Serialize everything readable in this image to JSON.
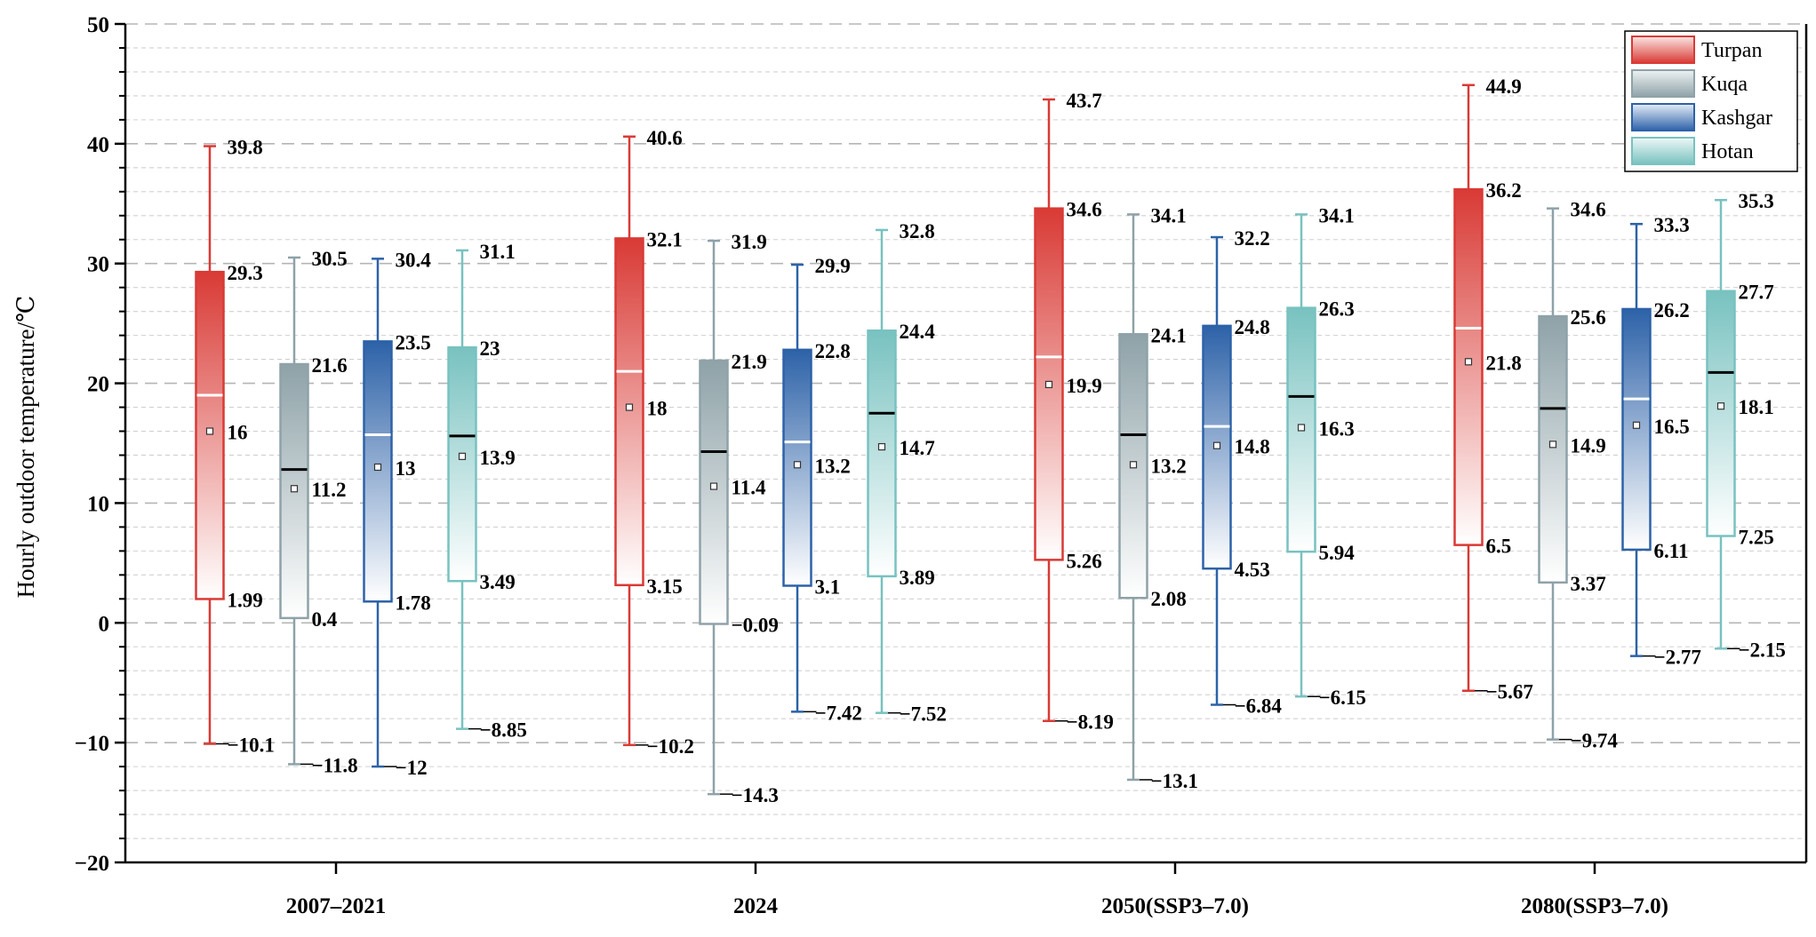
{
  "chart_data": {
    "type": "box",
    "title": "",
    "xlabel": "",
    "ylabel": "Hourly outdoor temperature/℃",
    "ylim": [
      -20,
      50
    ],
    "yticks": [
      "−20",
      "−10",
      "0",
      "10",
      "20",
      "30",
      "40",
      "50"
    ],
    "categories": [
      "2007–2021",
      "2024",
      "2050(SSP3–7.0)",
      "2080(SSP3–7.0)"
    ],
    "legend_position": "top-right",
    "grid": true,
    "series": [
      {
        "name": "Turpan",
        "color": "#d93a35",
        "light": "#fbe6e4",
        "median_color": "#ffffff",
        "boxes": [
          {
            "min": -10.1,
            "q1": 1.99,
            "median": 19.0,
            "mean": 16,
            "q3": 29.3,
            "max": 39.8,
            "labels": {
              "min": "−10.1",
              "q1": "1.99",
              "mean": "16",
              "q3": "29.3",
              "max": "39.8"
            }
          },
          {
            "min": -10.2,
            "q1": 3.15,
            "median": 21.0,
            "mean": 18,
            "q3": 32.1,
            "max": 40.6,
            "labels": {
              "min": "−10.2",
              "q1": "3.15",
              "mean": "18",
              "q3": "32.1",
              "max": "40.6"
            }
          },
          {
            "min": -8.19,
            "q1": 5.26,
            "median": 22.2,
            "mean": 19.9,
            "q3": 34.6,
            "max": 43.7,
            "labels": {
              "min": "−8.19",
              "q1": "5.26",
              "mean": "19.9",
              "q3": "34.6",
              "max": "43.7"
            }
          },
          {
            "min": -5.67,
            "q1": 6.5,
            "median": 24.6,
            "mean": 21.8,
            "q3": 36.2,
            "max": 44.9,
            "labels": {
              "min": "−5.67",
              "q1": "6.5",
              "mean": "21.8",
              "q3": "36.2",
              "max": "44.9"
            }
          }
        ]
      },
      {
        "name": "Kuqa",
        "color": "#8ea2a8",
        "light": "#eef2f3",
        "median_color": "#000000",
        "boxes": [
          {
            "min": -11.8,
            "q1": 0.4,
            "median": 12.8,
            "mean": 11.2,
            "q3": 21.6,
            "max": 30.5,
            "labels": {
              "min": "−11.8",
              "q1": "0.4",
              "mean": "11.2",
              "q3": "21.6",
              "max": "30.5"
            }
          },
          {
            "min": -14.3,
            "q1": -0.09,
            "median": 14.3,
            "mean": 11.4,
            "q3": 21.9,
            "max": 31.9,
            "labels": {
              "min": "−14.3",
              "q1": "−0.09",
              "mean": "11.4",
              "q3": "21.9",
              "max": "31.9"
            }
          },
          {
            "min": -13.1,
            "q1": 2.08,
            "median": 15.7,
            "mean": 13.2,
            "q3": 24.1,
            "max": 34.1,
            "labels": {
              "min": "−13.1",
              "q1": "2.08",
              "mean": "13.2",
              "q3": "24.1",
              "max": "34.1"
            }
          },
          {
            "min": -9.74,
            "q1": 3.37,
            "median": 17.9,
            "mean": 14.9,
            "q3": 25.6,
            "max": 34.6,
            "labels": {
              "min": "−9.74",
              "q1": "3.37",
              "mean": "14.9",
              "q3": "25.6",
              "max": "34.6"
            }
          }
        ]
      },
      {
        "name": "Kashgar",
        "color": "#2d62a8",
        "light": "#e6eef8",
        "median_color": "#ffffff",
        "boxes": [
          {
            "min": -12,
            "q1": 1.78,
            "median": 15.7,
            "mean": 13,
            "q3": 23.5,
            "max": 30.4,
            "labels": {
              "min": "−12",
              "q1": "1.78",
              "mean": "13",
              "q3": "23.5",
              "max": "30.4"
            }
          },
          {
            "min": -7.42,
            "q1": 3.1,
            "median": 15.1,
            "mean": 13.2,
            "q3": 22.8,
            "max": 29.9,
            "labels": {
              "min": "−7.42",
              "q1": "3.1",
              "mean": "13.2",
              "q3": "22.8",
              "max": "29.9"
            }
          },
          {
            "min": -6.84,
            "q1": 4.53,
            "median": 16.4,
            "mean": 14.8,
            "q3": 24.8,
            "max": 32.2,
            "labels": {
              "min": "−6.84",
              "q1": "4.53",
              "mean": "14.8",
              "q3": "24.8",
              "max": "32.2"
            }
          },
          {
            "min": -2.77,
            "q1": 6.11,
            "median": 18.7,
            "mean": 16.5,
            "q3": 26.2,
            "max": 33.3,
            "labels": {
              "min": "−2.77",
              "q1": "6.11",
              "mean": "16.5",
              "q3": "26.2",
              "max": "33.3"
            }
          }
        ]
      },
      {
        "name": "Hotan",
        "color": "#78c2c0",
        "light": "#eef8f7",
        "median_color": "#000000",
        "boxes": [
          {
            "min": -8.85,
            "q1": 3.49,
            "median": 15.6,
            "mean": 13.9,
            "q3": 23,
            "max": 31.1,
            "labels": {
              "min": "−8.85",
              "q1": "3.49",
              "mean": "13.9",
              "q3": "23",
              "max": "31.1"
            }
          },
          {
            "min": -7.52,
            "q1": 3.89,
            "median": 17.5,
            "mean": 14.7,
            "q3": 24.4,
            "max": 32.8,
            "labels": {
              "min": "−7.52",
              "q1": "3.89",
              "mean": "14.7",
              "q3": "24.4",
              "max": "32.8"
            }
          },
          {
            "min": -6.15,
            "q1": 5.94,
            "median": 18.9,
            "mean": 16.3,
            "q3": 26.3,
            "max": 34.1,
            "labels": {
              "min": "−6.15",
              "q1": "5.94",
              "mean": "16.3",
              "q3": "26.3",
              "max": "34.1"
            }
          },
          {
            "min": -2.15,
            "q1": 7.25,
            "median": 20.9,
            "mean": 18.1,
            "q3": 27.7,
            "max": 35.3,
            "labels": {
              "min": "−2.15",
              "q1": "7.25",
              "mean": "18.1",
              "q3": "27.7",
              "max": "35.3"
            }
          }
        ]
      }
    ]
  }
}
